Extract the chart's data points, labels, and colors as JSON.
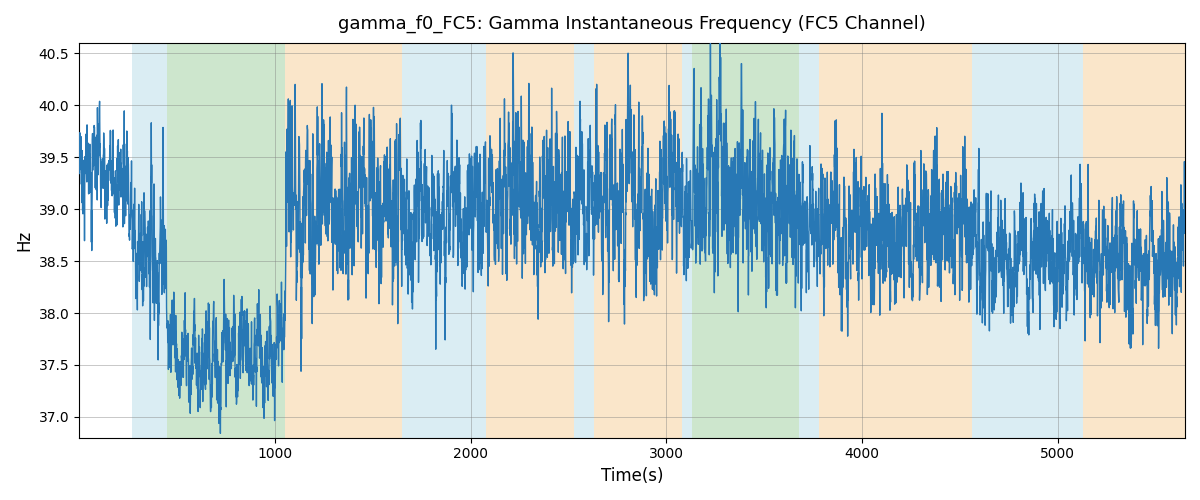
{
  "title": "gamma_f0_FC5: Gamma Instantaneous Frequency (FC5 Channel)",
  "xlabel": "Time(s)",
  "ylabel": "Hz",
  "xlim": [
    0,
    5650
  ],
  "ylim": [
    36.8,
    40.6
  ],
  "yticks": [
    37.0,
    37.5,
    38.0,
    38.5,
    39.0,
    39.5,
    40.0,
    40.5
  ],
  "xticks": [
    1000,
    2000,
    3000,
    4000,
    5000
  ],
  "line_color": "#2878b5",
  "line_width": 1.0,
  "background_color": "#ffffff",
  "colored_regions": [
    {
      "start": 270,
      "end": 450,
      "color": "#add8e6",
      "alpha": 0.45
    },
    {
      "start": 450,
      "end": 1050,
      "color": "#90c990",
      "alpha": 0.45
    },
    {
      "start": 1050,
      "end": 1650,
      "color": "#f5c98a",
      "alpha": 0.45
    },
    {
      "start": 1650,
      "end": 2080,
      "color": "#add8e6",
      "alpha": 0.45
    },
    {
      "start": 2080,
      "end": 2530,
      "color": "#f5c98a",
      "alpha": 0.45
    },
    {
      "start": 2530,
      "end": 2630,
      "color": "#add8e6",
      "alpha": 0.45
    },
    {
      "start": 2630,
      "end": 3080,
      "color": "#f5c98a",
      "alpha": 0.45
    },
    {
      "start": 3080,
      "end": 3130,
      "color": "#add8e6",
      "alpha": 0.45
    },
    {
      "start": 3130,
      "end": 3680,
      "color": "#90c990",
      "alpha": 0.45
    },
    {
      "start": 3680,
      "end": 3780,
      "color": "#add8e6",
      "alpha": 0.45
    },
    {
      "start": 3780,
      "end": 4560,
      "color": "#f5c98a",
      "alpha": 0.45
    },
    {
      "start": 4560,
      "end": 5130,
      "color": "#add8e6",
      "alpha": 0.45
    },
    {
      "start": 5130,
      "end": 5650,
      "color": "#f5c98a",
      "alpha": 0.45
    }
  ],
  "segments": [
    {
      "start": 0,
      "end": 270,
      "mean": 39.1,
      "std": 0.25,
      "ar": 0.82
    },
    {
      "start": 270,
      "end": 450,
      "mean": 38.5,
      "std": 0.3,
      "ar": 0.8
    },
    {
      "start": 450,
      "end": 1050,
      "mean": 37.55,
      "std": 0.22,
      "ar": 0.88
    },
    {
      "start": 1050,
      "end": 1650,
      "mean": 39.1,
      "std": 0.38,
      "ar": 0.75
    },
    {
      "start": 1650,
      "end": 2080,
      "mean": 38.9,
      "std": 0.32,
      "ar": 0.78
    },
    {
      "start": 2080,
      "end": 2530,
      "mean": 39.1,
      "std": 0.35,
      "ar": 0.76
    },
    {
      "start": 2530,
      "end": 2630,
      "mean": 39.0,
      "std": 0.3,
      "ar": 0.78
    },
    {
      "start": 2630,
      "end": 3080,
      "mean": 39.1,
      "std": 0.38,
      "ar": 0.75
    },
    {
      "start": 3080,
      "end": 3130,
      "mean": 38.9,
      "std": 0.3,
      "ar": 0.78
    },
    {
      "start": 3130,
      "end": 3680,
      "mean": 39.2,
      "std": 0.38,
      "ar": 0.75
    },
    {
      "start": 3680,
      "end": 3780,
      "mean": 39.0,
      "std": 0.3,
      "ar": 0.78
    },
    {
      "start": 3780,
      "end": 4560,
      "mean": 38.8,
      "std": 0.32,
      "ar": 0.78
    },
    {
      "start": 4560,
      "end": 5130,
      "mean": 38.6,
      "std": 0.28,
      "ar": 0.8
    },
    {
      "start": 5130,
      "end": 5650,
      "mean": 38.5,
      "std": 0.28,
      "ar": 0.8
    }
  ],
  "seed": 17,
  "n_points": 5650,
  "time_start": 0,
  "time_end": 5650
}
